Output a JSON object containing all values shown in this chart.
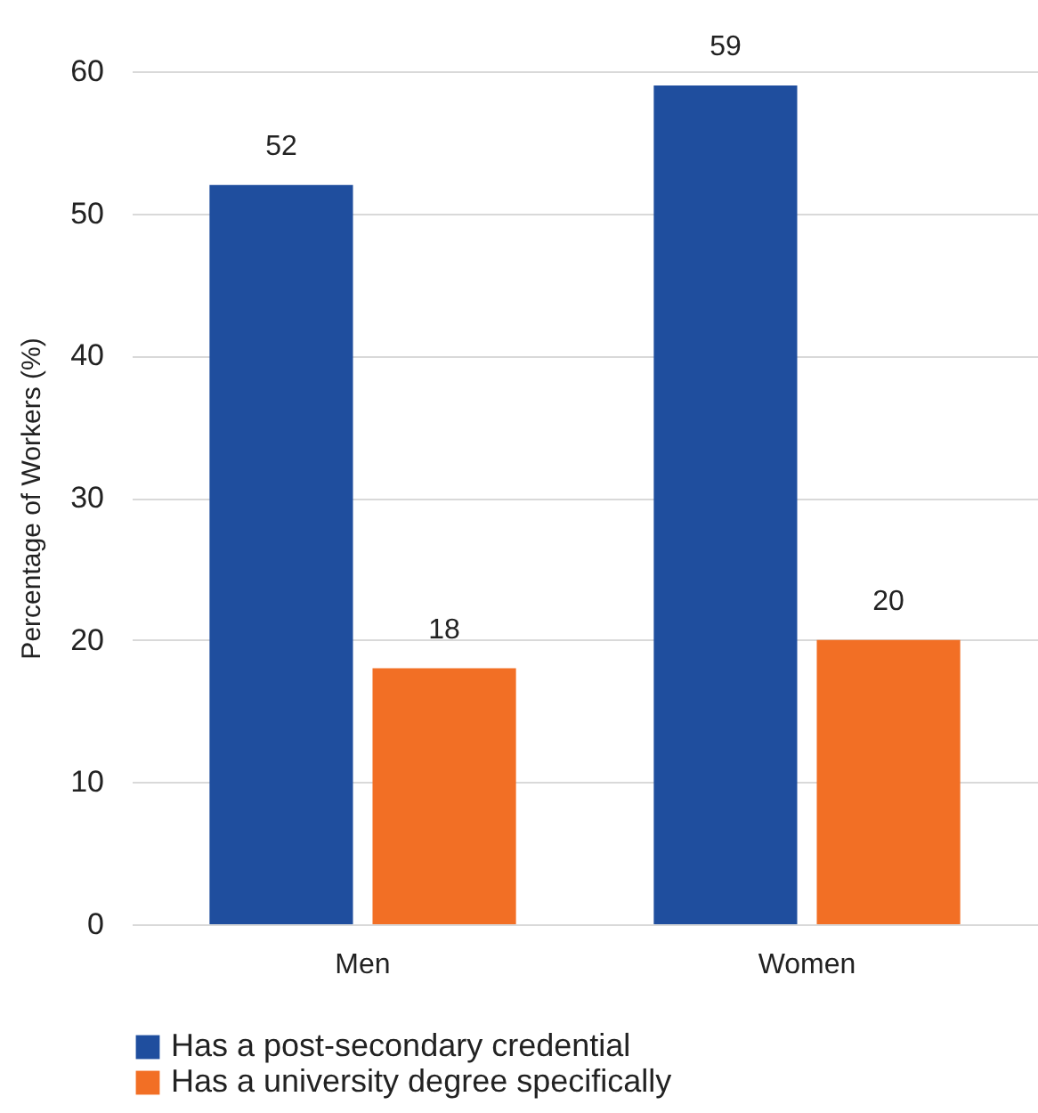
{
  "chart_data": {
    "type": "bar",
    "ylabel": "Percentage of Workers (%)",
    "categories": [
      "Men",
      "Women"
    ],
    "series": [
      {
        "name": "Has a post-secondary credential",
        "color": "#1f4e9e",
        "values": [
          52,
          59
        ]
      },
      {
        "name": "Has a university degree specifically",
        "color": "#f26f25",
        "values": [
          18,
          20
        ]
      }
    ],
    "ylim": [
      0,
      60
    ],
    "yticks": [
      0,
      10,
      20,
      30,
      40,
      50,
      60
    ],
    "grid": "y",
    "legend": "bottom",
    "data_labels": true
  }
}
